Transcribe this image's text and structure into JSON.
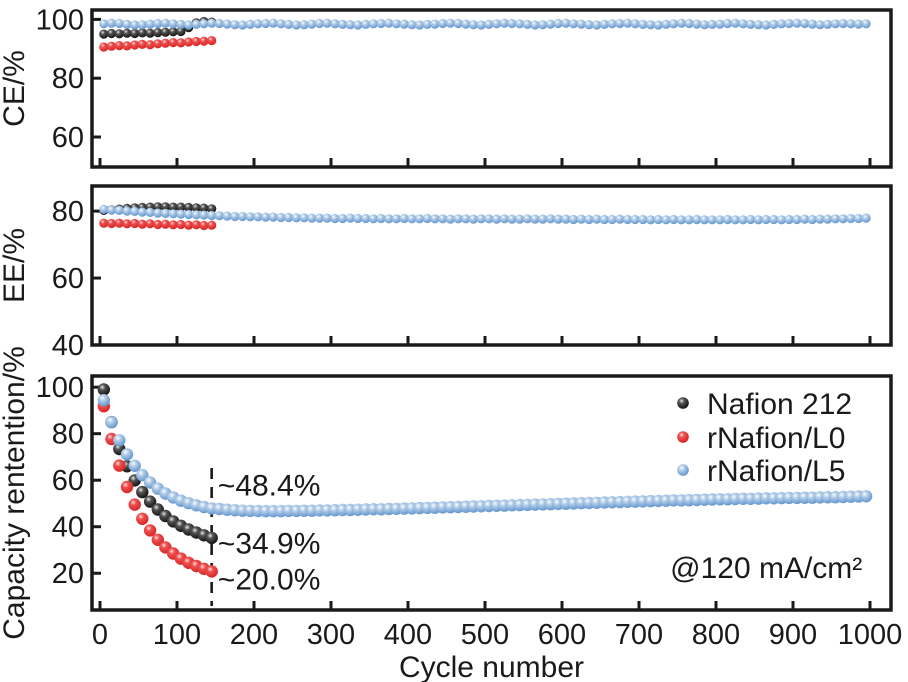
{
  "figure": {
    "background": "#ffffff",
    "frame_color": "#1a1a1a"
  },
  "chart_data": {
    "type": "scatter",
    "xlabel": "Cycle number",
    "x_ticks": [
      0,
      100,
      200,
      300,
      400,
      500,
      600,
      700,
      800,
      900,
      1000
    ],
    "x_range": [
      -10,
      1027
    ],
    "legend": [
      {
        "key": "nafion212",
        "label": "Nafion 212",
        "color": "#1a1a1a"
      },
      {
        "key": "rnafion_l0",
        "label": "rNafion/L0",
        "color": "#e02525"
      },
      {
        "key": "rnafion_l5",
        "label": "rNafion/L5",
        "color": "#79a5d5"
      }
    ],
    "panels": [
      {
        "id": "ce",
        "ylabel": "CE/%",
        "y_ticks": [
          60,
          80,
          100
        ],
        "y_range": [
          49.8,
          103.2
        ],
        "series": [
          {
            "key": "nafion212",
            "name": "Nafion 212",
            "color": "#1a1a1a",
            "x": [
              5,
              15,
              25,
              35,
              45,
              55,
              65,
              75,
              85,
              95,
              105,
              115,
              125,
              135,
              145
            ],
            "y": [
              95.0,
              95.2,
              95.1,
              95.3,
              95.2,
              95.4,
              95.3,
              95.5,
              95.6,
              95.8,
              95.9,
              97.2,
              98.8,
              99.3,
              99.1
            ]
          },
          {
            "key": "rnafion_l0",
            "name": "rNafion/L0",
            "color": "#e02525",
            "x": [
              5,
              15,
              25,
              35,
              45,
              55,
              65,
              75,
              85,
              95,
              105,
              115,
              125,
              135,
              145
            ],
            "y": [
              90.6,
              90.9,
              91.1,
              91.0,
              91.3,
              91.5,
              91.4,
              91.7,
              91.9,
              92.1,
              92.0,
              92.3,
              92.5,
              92.6,
              92.8
            ]
          },
          {
            "key": "rnafion_l5",
            "name": "rNafion/L5",
            "color": "#79a5d5",
            "x": [
              5,
              15,
              25,
              35,
              45,
              55,
              65,
              75,
              85,
              95,
              105,
              115,
              125,
              135,
              145,
              155,
              165,
              175,
              185,
              195,
              205,
              215,
              225,
              235,
              245,
              255,
              265,
              275,
              285,
              295,
              305,
              315,
              325,
              335,
              345,
              355,
              365,
              375,
              385,
              395,
              405,
              415,
              425,
              435,
              445,
              455,
              465,
              475,
              485,
              495,
              505,
              515,
              525,
              535,
              545,
              555,
              565,
              575,
              585,
              595,
              605,
              615,
              625,
              635,
              645,
              655,
              665,
              675,
              685,
              695,
              705,
              715,
              725,
              735,
              745,
              755,
              765,
              775,
              785,
              795,
              805,
              815,
              825,
              835,
              845,
              855,
              865,
              875,
              885,
              895,
              905,
              915,
              925,
              935,
              945,
              955,
              965,
              975,
              985,
              995
            ],
            "y": [
              98.5,
              98.7,
              98.6,
              98.3,
              98.1,
              98.2,
              98.4,
              98.6,
              98.7,
              98.5,
              98.3,
              98.1,
              98.3,
              98.5,
              98.7,
              98.6,
              98.4,
              98.2,
              98.1,
              98.3,
              98.5,
              98.6,
              98.7,
              98.5,
              98.3,
              98.1,
              98.2,
              98.4,
              98.6,
              98.7,
              98.5,
              98.3,
              98.2,
              98.1,
              98.3,
              98.5,
              98.6,
              98.7,
              98.5,
              98.4,
              98.2,
              98.1,
              98.3,
              98.4,
              98.6,
              98.7,
              98.6,
              98.4,
              98.2,
              98.1,
              98.3,
              98.5,
              98.7,
              98.6,
              98.5,
              98.3,
              98.1,
              98.2,
              98.4,
              98.6,
              98.7,
              98.5,
              98.4,
              98.2,
              98.1,
              98.3,
              98.5,
              98.6,
              98.7,
              98.5,
              98.3,
              98.2,
              98.1,
              98.3,
              98.5,
              98.7,
              98.6,
              98.4,
              98.2,
              98.3,
              98.4,
              98.6,
              98.7,
              98.5,
              98.3,
              98.2,
              98.1,
              98.3,
              98.5,
              98.6,
              98.7,
              98.6,
              98.4,
              98.2,
              98.3,
              98.5,
              98.6,
              98.5,
              98.4,
              98.5
            ]
          }
        ]
      },
      {
        "id": "ee",
        "ylabel": "EE/%",
        "y_ticks": [
          40,
          60,
          80
        ],
        "y_range": [
          40.0,
          87.5
        ],
        "series": [
          {
            "key": "nafion212",
            "name": "Nafion 212",
            "color": "#1a1a1a",
            "x": [
              5,
              15,
              25,
              35,
              45,
              55,
              65,
              75,
              85,
              95,
              105,
              115,
              125,
              135,
              145
            ],
            "y": [
              80.2,
              80.4,
              80.6,
              80.8,
              81.0,
              81.1,
              81.2,
              81.3,
              81.3,
              81.2,
              81.2,
              81.1,
              81.0,
              80.9,
              80.7
            ]
          },
          {
            "key": "rnafion_l0",
            "name": "rNafion/L0",
            "color": "#e02525",
            "x": [
              5,
              15,
              25,
              35,
              45,
              55,
              65,
              75,
              85,
              95,
              105,
              115,
              125,
              135,
              145
            ],
            "y": [
              76.4,
              76.3,
              76.4,
              76.2,
              76.3,
              76.1,
              76.2,
              76.0,
              76.1,
              75.9,
              76.0,
              75.8,
              75.9,
              75.7,
              75.8
            ]
          },
          {
            "key": "rnafion_l5",
            "name": "rNafion/L5",
            "color": "#79a5d5",
            "x": [
              5,
              15,
              25,
              35,
              45,
              55,
              65,
              75,
              85,
              95,
              105,
              115,
              125,
              135,
              145,
              155,
              165,
              175,
              185,
              195,
              205,
              215,
              225,
              235,
              245,
              255,
              265,
              275,
              285,
              295,
              305,
              315,
              325,
              335,
              345,
              355,
              365,
              375,
              385,
              395,
              405,
              415,
              425,
              435,
              445,
              455,
              465,
              475,
              485,
              495,
              505,
              515,
              525,
              535,
              545,
              555,
              565,
              575,
              585,
              595,
              605,
              615,
              625,
              635,
              645,
              655,
              665,
              675,
              685,
              695,
              705,
              715,
              725,
              735,
              745,
              755,
              765,
              775,
              785,
              795,
              805,
              815,
              825,
              835,
              845,
              855,
              865,
              875,
              885,
              895,
              905,
              915,
              925,
              935,
              945,
              955,
              965,
              975,
              985,
              995
            ],
            "y": [
              80.5,
              80.3,
              80.2,
              80.0,
              79.9,
              79.7,
              79.6,
              79.4,
              79.3,
              79.2,
              79.1,
              79.0,
              78.9,
              78.8,
              78.7,
              78.6,
              78.5,
              78.4,
              78.4,
              78.3,
              78.3,
              78.2,
              78.2,
              78.1,
              78.1,
              78.0,
              78.0,
              77.9,
              77.9,
              77.9,
              77.8,
              77.8,
              77.9,
              77.8,
              77.8,
              77.7,
              77.8,
              77.7,
              77.7,
              77.8,
              77.7,
              77.7,
              77.8,
              77.7,
              77.7,
              77.6,
              77.7,
              77.7,
              77.6,
              77.7,
              77.7,
              77.6,
              77.7,
              77.6,
              77.6,
              77.7,
              77.6,
              77.6,
              77.7,
              77.6,
              77.6,
              77.5,
              77.6,
              77.5,
              77.6,
              77.5,
              77.5,
              77.6,
              77.5,
              77.5,
              77.5,
              77.4,
              77.5,
              77.4,
              77.5,
              77.4,
              77.4,
              77.5,
              77.4,
              77.4,
              77.4,
              77.5,
              77.4,
              77.4,
              77.5,
              77.4,
              77.5,
              77.5,
              77.4,
              77.5,
              77.5,
              77.6,
              77.5,
              77.6,
              77.6,
              77.7,
              77.7,
              77.8,
              77.8,
              77.9
            ]
          }
        ]
      },
      {
        "id": "capacity",
        "ylabel": "Capacity rentention/%",
        "y_ticks": [
          20,
          40,
          60,
          80,
          100
        ],
        "y_range": [
          4.2,
          104.8
        ],
        "dashed_line_x": 145,
        "series": [
          {
            "key": "nafion212",
            "name": "Nafion 212",
            "color": "#1a1a1a",
            "x": [
              5,
              15,
              25,
              35,
              45,
              55,
              65,
              75,
              85,
              95,
              105,
              115,
              125,
              135,
              145
            ],
            "y": [
              99.0,
              85.0,
              73.4,
              66.0,
              59.9,
              54.9,
              50.8,
              47.4,
              44.6,
              42.3,
              40.4,
              38.8,
              37.5,
              36.3,
              35.2
            ]
          },
          {
            "key": "rnafion_l0",
            "name": "rNafion/L0",
            "color": "#e02525",
            "x": [
              5,
              15,
              25,
              35,
              45,
              55,
              65,
              75,
              85,
              95,
              105,
              115,
              125,
              135,
              145
            ],
            "y": [
              91.8,
              77.7,
              66.3,
              57.1,
              49.5,
              43.4,
              38.4,
              34.4,
              31.1,
              28.5,
              26.3,
              24.5,
              23.1,
              21.9,
              20.8
            ]
          },
          {
            "key": "rnafion_l5",
            "name": "rNafion/L5",
            "color": "#79a5d5",
            "x": [
              5,
              15,
              25,
              35,
              45,
              55,
              65,
              75,
              85,
              95,
              105,
              115,
              125,
              135,
              145,
              155,
              165,
              175,
              185,
              195,
              205,
              215,
              225,
              235,
              245,
              255,
              265,
              275,
              285,
              295,
              305,
              315,
              325,
              335,
              345,
              355,
              365,
              375,
              385,
              395,
              405,
              415,
              425,
              435,
              445,
              455,
              465,
              475,
              485,
              495,
              505,
              515,
              525,
              535,
              545,
              555,
              565,
              575,
              585,
              595,
              605,
              615,
              625,
              635,
              645,
              655,
              665,
              675,
              685,
              695,
              705,
              715,
              725,
              735,
              745,
              755,
              765,
              775,
              785,
              795,
              805,
              815,
              825,
              835,
              845,
              855,
              865,
              875,
              885,
              895,
              905,
              915,
              925,
              935,
              945,
              955,
              965,
              975,
              985,
              995
            ],
            "y": [
              94.4,
              84.9,
              77.2,
              71.1,
              66.2,
              62.2,
              59.0,
              56.4,
              54.3,
              52.6,
              51.2,
              50.1,
              49.2,
              48.5,
              47.9,
              47.6,
              47.3,
              47.1,
              46.9,
              46.8,
              46.8,
              46.7,
              46.7,
              46.7,
              46.8,
              46.8,
              46.9,
              46.9,
              47.0,
              47.0,
              47.1,
              47.2,
              47.2,
              47.3,
              47.4,
              47.5,
              47.5,
              47.6,
              47.7,
              47.8,
              47.9,
              48.0,
              48.1,
              48.2,
              48.3,
              48.4,
              48.5,
              48.6,
              48.7,
              48.8,
              48.9,
              49.0,
              49.1,
              49.2,
              49.3,
              49.4,
              49.5,
              49.6,
              49.7,
              49.8,
              49.9,
              50.0,
              50.1,
              50.2,
              50.3,
              50.4,
              50.5,
              50.6,
              50.7,
              50.8,
              50.9,
              51.0,
              51.1,
              51.2,
              51.3,
              51.3,
              51.4,
              51.5,
              51.6,
              51.7,
              51.8,
              51.8,
              51.9,
              52.0,
              52.0,
              52.1,
              52.2,
              52.2,
              52.3,
              52.4,
              52.4,
              52.5,
              52.5,
              52.6,
              52.7,
              52.7,
              52.8,
              52.9,
              53.0,
              53.1
            ]
          }
        ],
        "annotations": [
          {
            "id": "retention-rnafion-l5",
            "text": "~48.4%",
            "color": "#7094c8",
            "x": 153,
            "y_value": 53.5,
            "anchor": "start"
          },
          {
            "id": "retention-nafion-212",
            "text": "~34.9%",
            "color": "#1a1a1a",
            "x": 153,
            "y_value": 28.5,
            "anchor": "start"
          },
          {
            "id": "retention-rnafion-l0",
            "text": "~20.0%",
            "color": "#e02525",
            "x": 153,
            "y_value": 13.0,
            "anchor": "start"
          },
          {
            "id": "current-density",
            "text": "@120 mA/cm²",
            "color": "#1a1a1a",
            "x": 990,
            "y_value": 18.0,
            "anchor": "end"
          }
        ]
      }
    ]
  }
}
